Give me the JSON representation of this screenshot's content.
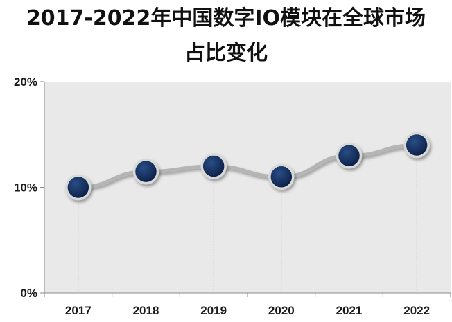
{
  "chart_data": {
    "type": "line",
    "title_line1": "2017-2022年中国数字IO模块在全球市场",
    "title_line2": "占比变化",
    "categories": [
      "2017",
      "2018",
      "2019",
      "2020",
      "2021",
      "2022"
    ],
    "series": [
      {
        "values": [
          10,
          11.5,
          12,
          11,
          13,
          14
        ]
      }
    ],
    "ylim": [
      0,
      20
    ],
    "y_ticks": [
      0,
      10,
      20
    ],
    "y_tick_labels": [
      "0%",
      "10%",
      "20%"
    ],
    "grid": false,
    "colors": {
      "plot_background": "#e9e9e9",
      "line": "#b5b5b5",
      "marker_fill": "#0f2a55",
      "marker_ring": "#d9d9d9",
      "drop_line": "#c8c8c8"
    }
  }
}
